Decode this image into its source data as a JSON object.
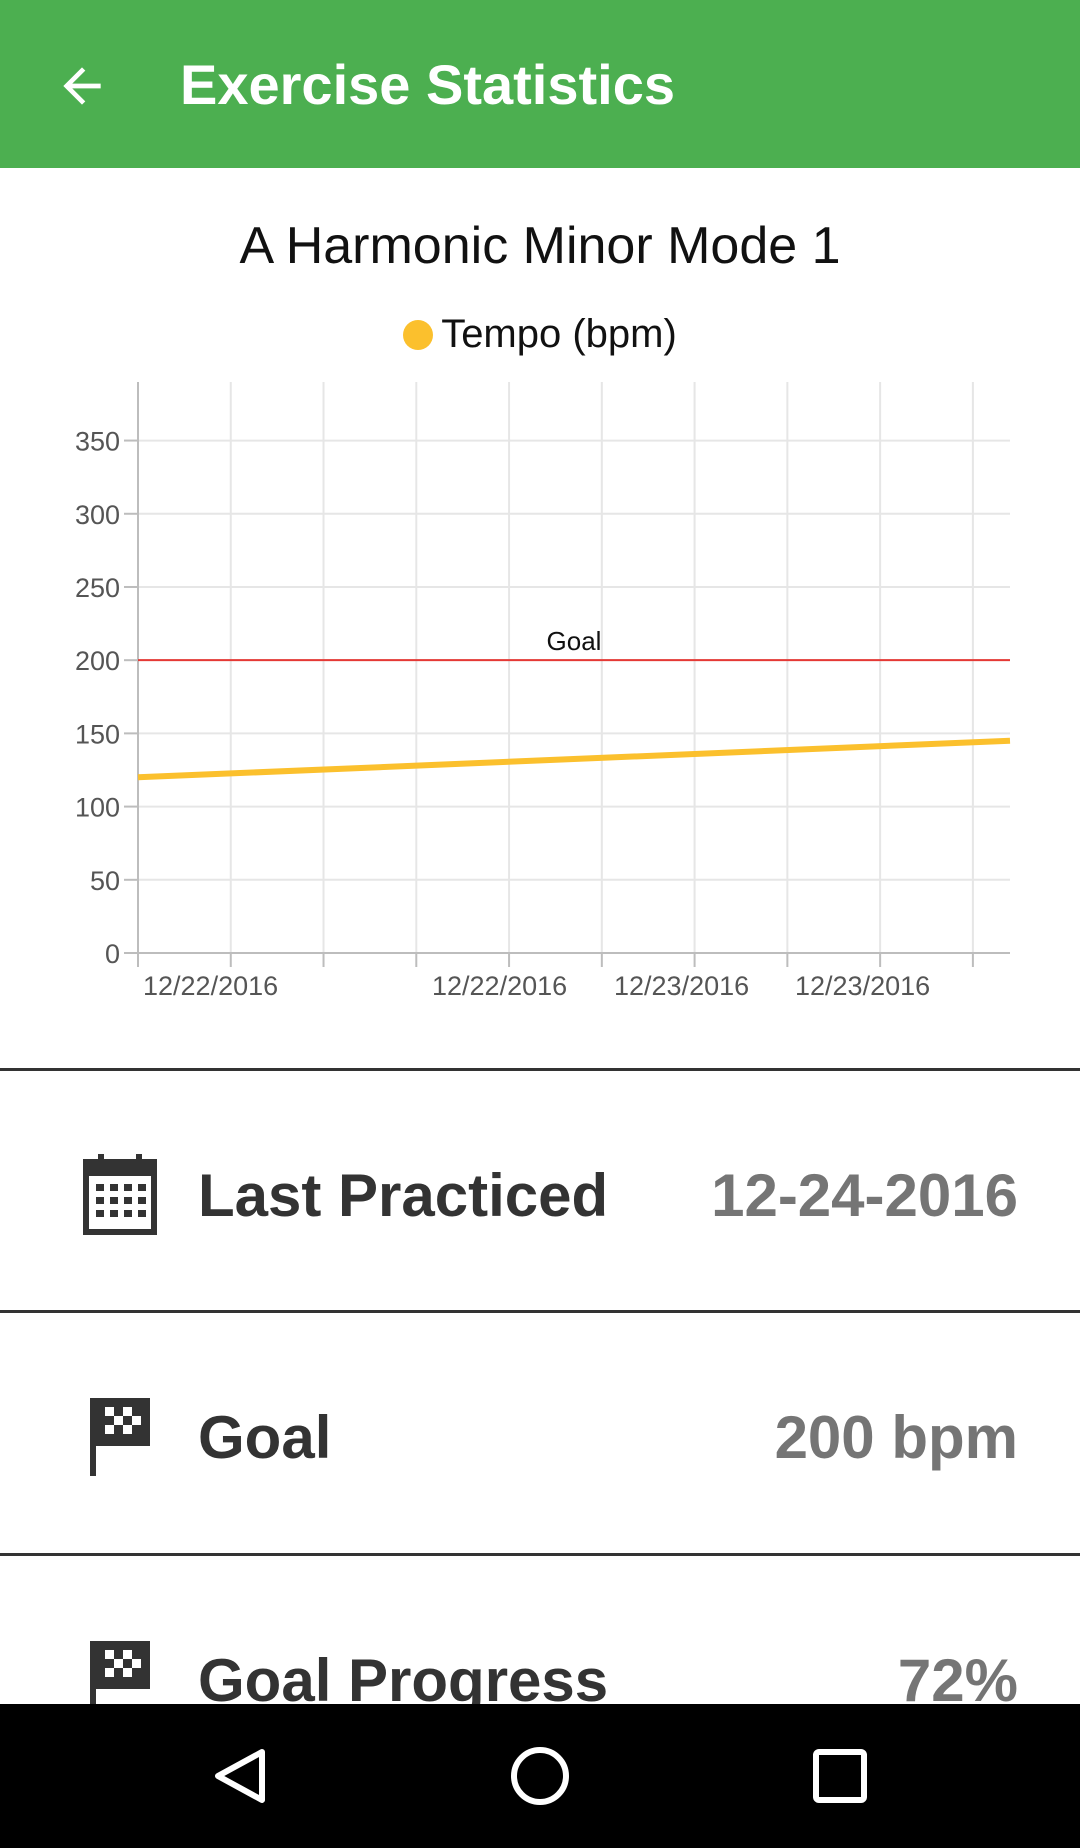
{
  "appbar": {
    "title": "Exercise Statistics",
    "back_icon": "arrow-left-icon"
  },
  "chart_data": {
    "type": "line",
    "title": "A Harmonic Minor Mode 1",
    "xlabel": "",
    "ylabel": "",
    "ylim": [
      0,
      390
    ],
    "yticks": [
      0,
      50,
      100,
      150,
      200,
      250,
      300,
      350
    ],
    "xtick_labels": [
      "12/22/2016",
      "",
      "",
      "12/22/2016",
      "12/23/2016",
      "12/23/2016"
    ],
    "series": [
      {
        "name": "Tempo (bpm)",
        "color": "#fbc02d",
        "x": [
          0,
          1
        ],
        "values": [
          120,
          145
        ]
      }
    ],
    "reference_line": {
      "label": "Goal",
      "value": 200,
      "color": "#e53935"
    },
    "grid": true,
    "legend": "top-center"
  },
  "stats": [
    {
      "label": "Last Practiced",
      "value": "12-24-2016",
      "icon": "calendar-icon"
    },
    {
      "label": "Goal",
      "value": "200 bpm",
      "icon": "checkered-flag-icon"
    },
    {
      "label": "Goal Progress",
      "value": "72%",
      "icon": "checkered-flag-icon"
    }
  ],
  "navbar": {
    "back": "nav-back-icon",
    "home": "nav-home-icon",
    "recents": "nav-recents-icon"
  }
}
